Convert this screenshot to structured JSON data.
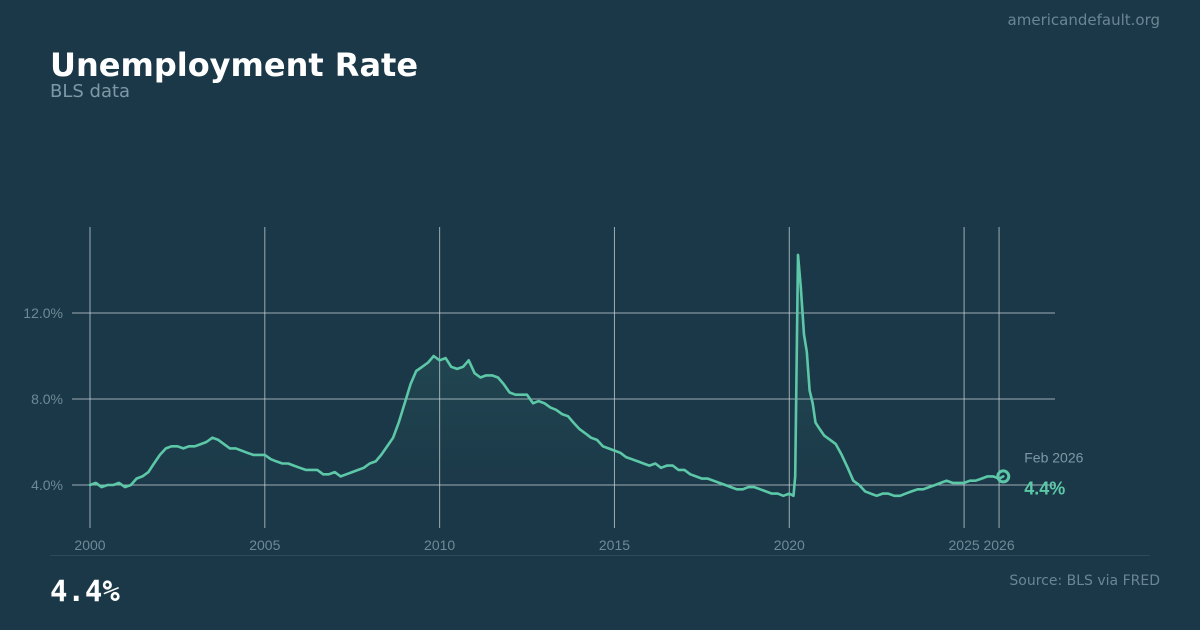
{
  "header": {
    "site": "americandefault.org",
    "title": "Unemployment Rate",
    "subtitle": "BLS data"
  },
  "footer": {
    "big_value": "4.4%",
    "source": "Source: BLS via FRED"
  },
  "colors": {
    "background": "#1b3848",
    "line": "#5cc8a8",
    "grid": "#c9d3d8",
    "tick_text": "#6f8996"
  },
  "chart_data": {
    "type": "line",
    "title": "Unemployment Rate",
    "xlabel": "",
    "ylabel": "",
    "ylim": [
      2.0,
      16.0
    ],
    "xlim": [
      2000.0,
      2027.6
    ],
    "x_ticks": [
      2000,
      2005,
      2010,
      2015,
      2020,
      2025,
      2026
    ],
    "y_ticks": [
      4.0,
      8.0,
      12.0
    ],
    "y_tick_labels": [
      "4.0%",
      "8.0%",
      "12.0%"
    ],
    "grid": true,
    "annotation": {
      "date_label": "Feb 2026",
      "value_label": "4.4%",
      "x": 2026.12,
      "y": 4.4
    },
    "series": [
      {
        "points": [
          [
            2000.0,
            4.0
          ],
          [
            2000.17,
            4.1
          ],
          [
            2000.33,
            3.9
          ],
          [
            2000.5,
            4.0
          ],
          [
            2000.67,
            4.0
          ],
          [
            2000.83,
            4.1
          ],
          [
            2001.0,
            3.9
          ],
          [
            2001.17,
            4.0
          ],
          [
            2001.33,
            4.3
          ],
          [
            2001.5,
            4.4
          ],
          [
            2001.67,
            4.6
          ],
          [
            2001.83,
            5.0
          ],
          [
            2002.0,
            5.4
          ],
          [
            2002.17,
            5.7
          ],
          [
            2002.33,
            5.8
          ],
          [
            2002.5,
            5.8
          ],
          [
            2002.67,
            5.7
          ],
          [
            2002.83,
            5.8
          ],
          [
            2003.0,
            5.8
          ],
          [
            2003.17,
            5.9
          ],
          [
            2003.33,
            6.0
          ],
          [
            2003.5,
            6.2
          ],
          [
            2003.67,
            6.1
          ],
          [
            2003.83,
            5.9
          ],
          [
            2004.0,
            5.7
          ],
          [
            2004.17,
            5.7
          ],
          [
            2004.33,
            5.6
          ],
          [
            2004.5,
            5.5
          ],
          [
            2004.67,
            5.4
          ],
          [
            2004.83,
            5.4
          ],
          [
            2005.0,
            5.4
          ],
          [
            2005.17,
            5.2
          ],
          [
            2005.33,
            5.1
          ],
          [
            2005.5,
            5.0
          ],
          [
            2005.67,
            5.0
          ],
          [
            2005.83,
            4.9
          ],
          [
            2006.0,
            4.8
          ],
          [
            2006.17,
            4.7
          ],
          [
            2006.33,
            4.7
          ],
          [
            2006.5,
            4.7
          ],
          [
            2006.67,
            4.5
          ],
          [
            2006.83,
            4.5
          ],
          [
            2007.0,
            4.6
          ],
          [
            2007.17,
            4.4
          ],
          [
            2007.33,
            4.5
          ],
          [
            2007.5,
            4.6
          ],
          [
            2007.67,
            4.7
          ],
          [
            2007.83,
            4.8
          ],
          [
            2008.0,
            5.0
          ],
          [
            2008.17,
            5.1
          ],
          [
            2008.33,
            5.4
          ],
          [
            2008.5,
            5.8
          ],
          [
            2008.67,
            6.2
          ],
          [
            2008.83,
            6.9
          ],
          [
            2009.0,
            7.8
          ],
          [
            2009.17,
            8.7
          ],
          [
            2009.33,
            9.3
          ],
          [
            2009.5,
            9.5
          ],
          [
            2009.67,
            9.7
          ],
          [
            2009.83,
            10.0
          ],
          [
            2010.0,
            9.8
          ],
          [
            2010.17,
            9.9
          ],
          [
            2010.33,
            9.5
          ],
          [
            2010.5,
            9.4
          ],
          [
            2010.67,
            9.5
          ],
          [
            2010.83,
            9.8
          ],
          [
            2011.0,
            9.2
          ],
          [
            2011.17,
            9.0
          ],
          [
            2011.33,
            9.1
          ],
          [
            2011.5,
            9.1
          ],
          [
            2011.67,
            9.0
          ],
          [
            2011.83,
            8.7
          ],
          [
            2012.0,
            8.3
          ],
          [
            2012.17,
            8.2
          ],
          [
            2012.33,
            8.2
          ],
          [
            2012.5,
            8.2
          ],
          [
            2012.67,
            7.8
          ],
          [
            2012.83,
            7.9
          ],
          [
            2013.0,
            7.8
          ],
          [
            2013.17,
            7.6
          ],
          [
            2013.33,
            7.5
          ],
          [
            2013.5,
            7.3
          ],
          [
            2013.67,
            7.2
          ],
          [
            2013.83,
            6.9
          ],
          [
            2014.0,
            6.6
          ],
          [
            2014.17,
            6.4
          ],
          [
            2014.33,
            6.2
          ],
          [
            2014.5,
            6.1
          ],
          [
            2014.67,
            5.8
          ],
          [
            2014.83,
            5.7
          ],
          [
            2015.0,
            5.6
          ],
          [
            2015.17,
            5.5
          ],
          [
            2015.33,
            5.3
          ],
          [
            2015.5,
            5.2
          ],
          [
            2015.67,
            5.1
          ],
          [
            2015.83,
            5.0
          ],
          [
            2016.0,
            4.9
          ],
          [
            2016.17,
            5.0
          ],
          [
            2016.33,
            4.8
          ],
          [
            2016.5,
            4.9
          ],
          [
            2016.67,
            4.9
          ],
          [
            2016.83,
            4.7
          ],
          [
            2017.0,
            4.7
          ],
          [
            2017.17,
            4.5
          ],
          [
            2017.33,
            4.4
          ],
          [
            2017.5,
            4.3
          ],
          [
            2017.67,
            4.3
          ],
          [
            2017.83,
            4.2
          ],
          [
            2018.0,
            4.1
          ],
          [
            2018.17,
            4.0
          ],
          [
            2018.33,
            3.9
          ],
          [
            2018.5,
            3.8
          ],
          [
            2018.67,
            3.8
          ],
          [
            2018.83,
            3.9
          ],
          [
            2019.0,
            3.9
          ],
          [
            2019.17,
            3.8
          ],
          [
            2019.33,
            3.7
          ],
          [
            2019.5,
            3.6
          ],
          [
            2019.67,
            3.6
          ],
          [
            2019.83,
            3.5
          ],
          [
            2020.0,
            3.6
          ],
          [
            2020.12,
            3.5
          ],
          [
            2020.17,
            4.4
          ],
          [
            2020.25,
            14.7
          ],
          [
            2020.33,
            13.2
          ],
          [
            2020.42,
            11.0
          ],
          [
            2020.5,
            10.2
          ],
          [
            2020.58,
            8.4
          ],
          [
            2020.67,
            7.8
          ],
          [
            2020.75,
            6.9
          ],
          [
            2020.83,
            6.7
          ],
          [
            2021.0,
            6.3
          ],
          [
            2021.17,
            6.1
          ],
          [
            2021.33,
            5.9
          ],
          [
            2021.5,
            5.4
          ],
          [
            2021.67,
            4.8
          ],
          [
            2021.83,
            4.2
          ],
          [
            2022.0,
            4.0
          ],
          [
            2022.17,
            3.7
          ],
          [
            2022.33,
            3.6
          ],
          [
            2022.5,
            3.5
          ],
          [
            2022.67,
            3.6
          ],
          [
            2022.83,
            3.6
          ],
          [
            2023.0,
            3.5
          ],
          [
            2023.17,
            3.5
          ],
          [
            2023.33,
            3.6
          ],
          [
            2023.5,
            3.7
          ],
          [
            2023.67,
            3.8
          ],
          [
            2023.83,
            3.8
          ],
          [
            2024.0,
            3.9
          ],
          [
            2024.17,
            4.0
          ],
          [
            2024.33,
            4.1
          ],
          [
            2024.5,
            4.2
          ],
          [
            2024.67,
            4.1
          ],
          [
            2024.83,
            4.1
          ],
          [
            2025.0,
            4.1
          ],
          [
            2025.17,
            4.2
          ],
          [
            2025.33,
            4.2
          ],
          [
            2025.5,
            4.3
          ],
          [
            2025.67,
            4.4
          ],
          [
            2025.83,
            4.4
          ],
          [
            2026.0,
            4.3
          ],
          [
            2026.12,
            4.4
          ]
        ]
      }
    ]
  }
}
